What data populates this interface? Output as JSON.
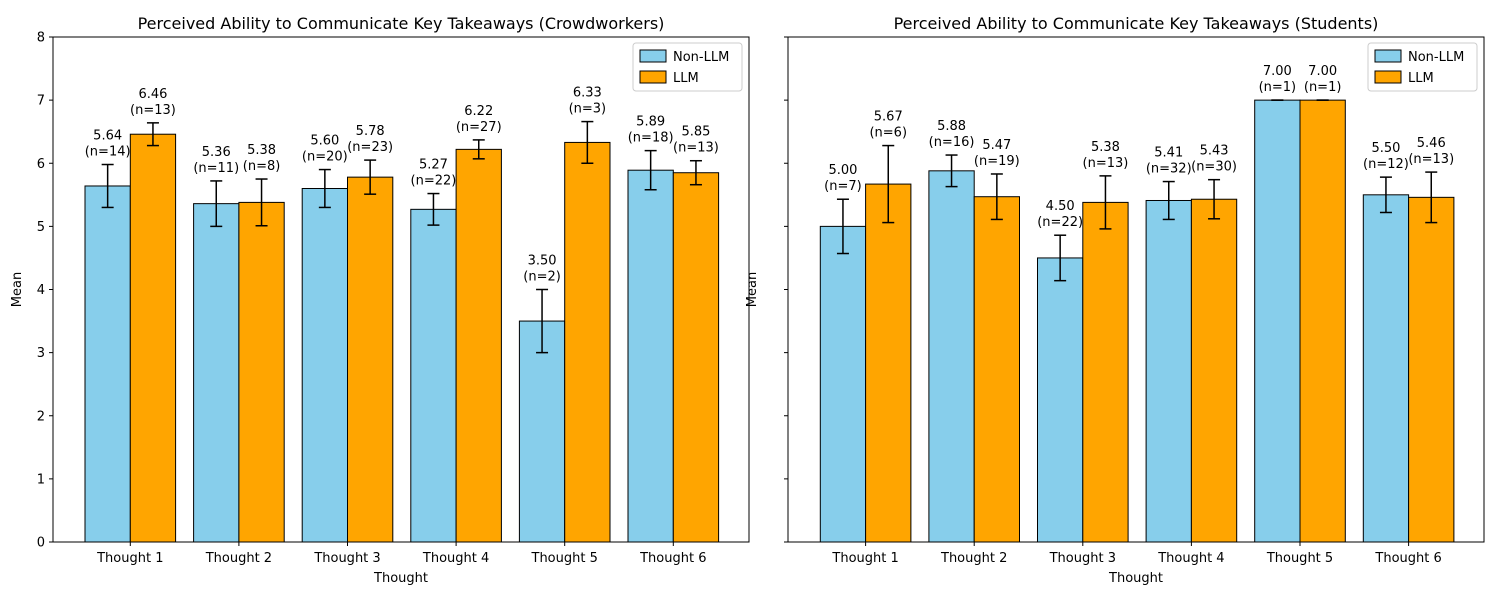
{
  "chart_data": [
    {
      "type": "bar",
      "title": "Perceived Ability to Communicate Key Takeaways (Crowdworkers)",
      "xlabel": "Thought",
      "ylabel": "Mean",
      "ylim": [
        0,
        8
      ],
      "yticks": [
        "0",
        "1",
        "2",
        "3",
        "4",
        "5",
        "6",
        "7",
        "8"
      ],
      "show_ytick_labels": true,
      "grid": false,
      "legend_position": "top-right",
      "categories": [
        "Thought 1",
        "Thought 2",
        "Thought 3",
        "Thought 4",
        "Thought 5",
        "Thought 6"
      ],
      "series": [
        {
          "name": "Non-LLM",
          "color": "#87CEEB",
          "values": [
            5.64,
            5.36,
            5.6,
            5.27,
            3.5,
            5.89
          ],
          "errors": [
            0.34,
            0.36,
            0.3,
            0.25,
            0.5,
            0.31
          ],
          "labels": [
            [
              "5.64",
              "(n=14)"
            ],
            [
              "5.36",
              "(n=11)"
            ],
            [
              "5.60",
              "(n=20)"
            ],
            [
              "5.27",
              "(n=22)"
            ],
            [
              "3.50",
              "(n=2)"
            ],
            [
              "5.89",
              "(n=18)"
            ]
          ]
        },
        {
          "name": "LLM",
          "color": "#FFA500",
          "values": [
            6.46,
            5.38,
            5.78,
            6.22,
            6.33,
            5.85
          ],
          "errors": [
            0.18,
            0.37,
            0.27,
            0.15,
            0.33,
            0.19
          ],
          "labels": [
            [
              "6.46",
              "(n=13)"
            ],
            [
              "5.38",
              "(n=8)"
            ],
            [
              "5.78",
              "(n=23)"
            ],
            [
              "6.22",
              "(n=27)"
            ],
            [
              "6.33",
              "(n=3)"
            ],
            [
              "5.85",
              "(n=13)"
            ]
          ]
        }
      ]
    },
    {
      "type": "bar",
      "title": "Perceived Ability to Communicate Key Takeaways (Students)",
      "xlabel": "Thought",
      "ylabel": "Mean",
      "ylim": [
        0,
        8
      ],
      "yticks": [],
      "show_ytick_labels": false,
      "grid": false,
      "legend_position": "top-right",
      "categories": [
        "Thought 1",
        "Thought 2",
        "Thought 3",
        "Thought 4",
        "Thought 5",
        "Thought 6"
      ],
      "series": [
        {
          "name": "Non-LLM",
          "color": "#87CEEB",
          "values": [
            5.0,
            5.88,
            4.5,
            5.41,
            7.0,
            5.5
          ],
          "errors": [
            0.43,
            0.25,
            0.36,
            0.3,
            0.0,
            0.28
          ],
          "labels": [
            [
              "5.00",
              "(n=7)"
            ],
            [
              "5.88",
              "(n=16)"
            ],
            [
              "4.50",
              "(n=22)"
            ],
            [
              "5.41",
              "(n=32)"
            ],
            [
              "7.00",
              "(n=1)"
            ],
            [
              "5.50",
              "(n=12)"
            ]
          ]
        },
        {
          "name": "LLM",
          "color": "#FFA500",
          "values": [
            5.67,
            5.47,
            5.38,
            5.43,
            7.0,
            5.46
          ],
          "errors": [
            0.61,
            0.36,
            0.42,
            0.31,
            0.0,
            0.4
          ],
          "labels": [
            [
              "5.67",
              "(n=6)"
            ],
            [
              "5.47",
              "(n=19)"
            ],
            [
              "5.38",
              "(n=13)"
            ],
            [
              "5.43",
              "(n=30)"
            ],
            [
              "7.00",
              "(n=1)"
            ],
            [
              "5.46",
              "(n=13)"
            ]
          ]
        }
      ]
    }
  ]
}
